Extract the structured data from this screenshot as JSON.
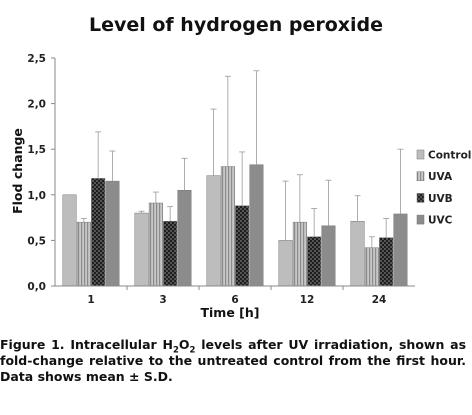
{
  "chart_data": {
    "type": "bar",
    "title": "Level of hydrogen peroxide",
    "xlabel": "Time [h]",
    "ylabel": "Flod change",
    "categories": [
      "1",
      "3",
      "6",
      "12",
      "24"
    ],
    "ylim": [
      0,
      2.5
    ],
    "yticks": [
      "0,0",
      "0,5",
      "1,0",
      "1,5",
      "2,0",
      "2,5"
    ],
    "grid": false,
    "legend_position": "right",
    "series": [
      {
        "name": "Control",
        "values": [
          1.0,
          0.8,
          1.21,
          0.5,
          0.71
        ],
        "error": [
          0,
          0.02,
          0.73,
          0.65,
          0.28
        ],
        "color": "#bdbdbd",
        "pattern": "solid"
      },
      {
        "name": "UVA",
        "values": [
          0.7,
          0.91,
          1.31,
          0.7,
          0.42
        ],
        "error": [
          0.04,
          0.12,
          0.99,
          0.52,
          0.12
        ],
        "color": "#a6a6a6",
        "pattern": "stripes"
      },
      {
        "name": "UVB",
        "values": [
          1.18,
          0.71,
          0.88,
          0.54,
          0.53
        ],
        "error": [
          0.51,
          0.16,
          0.59,
          0.31,
          0.21
        ],
        "color": "#2b2b2b",
        "pattern": "checker"
      },
      {
        "name": "UVC",
        "values": [
          1.15,
          1.05,
          1.33,
          0.66,
          0.79
        ],
        "error": [
          0.33,
          0.35,
          1.03,
          0.5,
          0.71
        ],
        "color": "#8c8c8c",
        "pattern": "solid"
      }
    ]
  },
  "caption": {
    "part1": "Figure 1. Intracellular H",
    "sub1": "2",
    "mid": "O",
    "sub2": "2",
    "part2": " levels after UV irradiation, shown as fold-change relative to the untreated control from the first hour. Data shows mean ± S.D."
  }
}
